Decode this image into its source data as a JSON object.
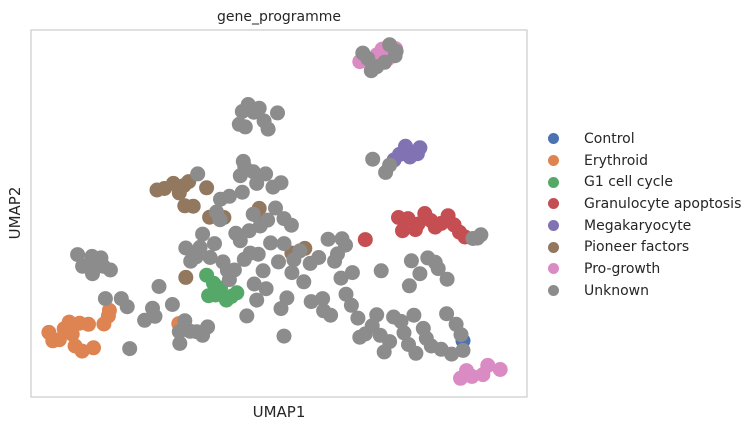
{
  "chart_data": {
    "type": "scatter",
    "title": "gene_programme",
    "xlabel": "UMAP1",
    "ylabel": "UMAP2",
    "xlim": [
      0,
      100
    ],
    "ylim": [
      0,
      100
    ],
    "x_ticks": [],
    "y_ticks": [],
    "grid": false,
    "legend_position": "right",
    "series": [
      {
        "name": "Control",
        "color": "#4c72b0",
        "points": [
          [
            87.1,
            15.3
          ]
        ]
      },
      {
        "name": "Erythroid",
        "color": "#dd8452",
        "points": [
          [
            3.6,
            17.6
          ],
          [
            4.4,
            15.3
          ],
          [
            5.7,
            15.6
          ],
          [
            6.7,
            18.6
          ],
          [
            7.7,
            20.4
          ],
          [
            8.3,
            17.1
          ],
          [
            8.9,
            13.9
          ],
          [
            9.8,
            20.1
          ],
          [
            10.3,
            12.5
          ],
          [
            11.6,
            19.8
          ],
          [
            12.6,
            13.4
          ],
          [
            14.7,
            19.9
          ],
          [
            15.6,
            22.1
          ],
          [
            15.8,
            23.6
          ],
          [
            29.8,
            20.0
          ]
        ]
      },
      {
        "name": "G1 cell cycle",
        "color": "#55a868",
        "points": [
          [
            35.4,
            33.2
          ],
          [
            36.8,
            31.0
          ],
          [
            37.2,
            27.8
          ],
          [
            38.2,
            29.7
          ],
          [
            39.4,
            26.4
          ],
          [
            40.4,
            27.4
          ],
          [
            41.5,
            28.4
          ],
          [
            35.8,
            27.6
          ]
        ]
      },
      {
        "name": "Granulocyte apoptosis",
        "color": "#c44e52",
        "points": [
          [
            67.4,
            42.9
          ],
          [
            74.1,
            48.9
          ],
          [
            74.9,
            45.3
          ],
          [
            76.0,
            48.6
          ],
          [
            77.5,
            45.6
          ],
          [
            78.0,
            47.1
          ],
          [
            79.4,
            50.0
          ],
          [
            80.6,
            48.1
          ],
          [
            81.5,
            46.3
          ],
          [
            82.7,
            47.3
          ],
          [
            84.1,
            49.4
          ],
          [
            85.3,
            46.9
          ],
          [
            86.4,
            44.9
          ],
          [
            87.5,
            43.6
          ]
        ]
      },
      {
        "name": "Megakaryocyte",
        "color": "#8172b3",
        "points": [
          [
            73.2,
            64.6
          ],
          [
            74.3,
            66.1
          ],
          [
            75.5,
            68.3
          ],
          [
            76.4,
            65.4
          ],
          [
            77.9,
            66.3
          ],
          [
            78.4,
            67.9
          ]
        ]
      },
      {
        "name": "Pioneer factors",
        "color": "#937860",
        "points": [
          [
            25.4,
            56.4
          ],
          [
            26.9,
            56.8
          ],
          [
            28.7,
            58.2
          ],
          [
            29.9,
            55.6
          ],
          [
            30.8,
            57.6
          ],
          [
            31.8,
            58.7
          ],
          [
            31.0,
            52.1
          ],
          [
            32.7,
            52.0
          ],
          [
            35.4,
            57.0
          ],
          [
            36.0,
            49.0
          ],
          [
            38.9,
            48.9
          ],
          [
            45.6,
            49.4
          ],
          [
            46.0,
            51.4
          ],
          [
            52.6,
            39.2
          ],
          [
            55.2,
            40.5
          ],
          [
            31.2,
            32.6
          ]
        ]
      },
      {
        "name": "Pro-growth",
        "color": "#da8bc3",
        "points": [
          [
            66.3,
            91.4
          ],
          [
            69.8,
            93.3
          ],
          [
            70.8,
            94.8
          ],
          [
            72.0,
            92.2
          ],
          [
            73.5,
            94.9
          ],
          [
            86.6,
            5.1
          ],
          [
            87.8,
            7.2
          ],
          [
            88.9,
            5.6
          ],
          [
            91.1,
            6.1
          ],
          [
            92.1,
            8.6
          ],
          [
            94.6,
            7.5
          ]
        ]
      },
      {
        "name": "Unknown",
        "color": "#8c8c8c",
        "points": [
          [
            12.0,
            36.6
          ],
          [
            12.4,
            33.6
          ],
          [
            14.6,
            35.6
          ],
          [
            16.0,
            34.6
          ],
          [
            15.0,
            26.8
          ],
          [
            18.2,
            26.8
          ],
          [
            19.4,
            24.6
          ],
          [
            19.9,
            13.2
          ],
          [
            22.9,
            20.9
          ],
          [
            24.5,
            24.2
          ],
          [
            25.8,
            30.1
          ],
          [
            25.0,
            22.0
          ],
          [
            28.5,
            25.2
          ],
          [
            29.9,
            17.8
          ],
          [
            30.0,
            14.6
          ],
          [
            31.0,
            20.8
          ],
          [
            32.1,
            17.9
          ],
          [
            33.4,
            17.8
          ],
          [
            34.6,
            16.8
          ],
          [
            35.6,
            19.1
          ],
          [
            31.2,
            40.6
          ],
          [
            32.2,
            37.0
          ],
          [
            33.3,
            38.2
          ],
          [
            34.1,
            40.8
          ],
          [
            34.6,
            44.4
          ],
          [
            36.1,
            38.0
          ],
          [
            37.0,
            41.8
          ],
          [
            37.4,
            50.4
          ],
          [
            38.1,
            48.3
          ],
          [
            38.2,
            53.9
          ],
          [
            38.7,
            36.8
          ],
          [
            39.6,
            34.5
          ],
          [
            40.0,
            32.0
          ],
          [
            41.0,
            34.6
          ],
          [
            41.3,
            44.6
          ],
          [
            42.2,
            42.6
          ],
          [
            43.0,
            37.5
          ],
          [
            43.5,
            22.1
          ],
          [
            44.0,
            45.3
          ],
          [
            44.2,
            39.2
          ],
          [
            45.0,
            30.8
          ],
          [
            45.5,
            26.4
          ],
          [
            45.8,
            38.9
          ],
          [
            46.8,
            34.4
          ],
          [
            47.4,
            29.5
          ],
          [
            48.3,
            42.0
          ],
          [
            48.8,
            57.2
          ],
          [
            49.3,
            51.5
          ],
          [
            49.9,
            36.8
          ],
          [
            51.0,
            41.8
          ],
          [
            50.4,
            24.1
          ],
          [
            51.0,
            16.6
          ],
          [
            51.6,
            27.0
          ],
          [
            52.6,
            33.9
          ],
          [
            53.0,
            37.4
          ],
          [
            54.2,
            39.8
          ],
          [
            55.0,
            31.4
          ],
          [
            56.3,
            36.4
          ],
          [
            56.5,
            26.0
          ],
          [
            58.0,
            38.0
          ],
          [
            58.8,
            26.8
          ],
          [
            59.0,
            23.5
          ],
          [
            60.4,
            22.3
          ],
          [
            61.8,
            39.0
          ],
          [
            62.5,
            32.4
          ],
          [
            63.5,
            28.0
          ],
          [
            64.8,
            33.9
          ],
          [
            64.6,
            25.0
          ],
          [
            65.9,
            21.5
          ],
          [
            66.3,
            16.3
          ],
          [
            67.4,
            17.2
          ],
          [
            68.8,
            19.4
          ],
          [
            69.7,
            22.4
          ],
          [
            70.4,
            16.8
          ],
          [
            70.6,
            34.4
          ],
          [
            71.2,
            12.3
          ],
          [
            72.3,
            15.1
          ],
          [
            73.1,
            21.8
          ],
          [
            74.6,
            20.6
          ],
          [
            75.2,
            17.5
          ],
          [
            76.1,
            14.3
          ],
          [
            76.3,
            30.3
          ],
          [
            76.7,
            37.1
          ],
          [
            77.2,
            22.3
          ],
          [
            77.6,
            11.9
          ],
          [
            78.4,
            33.6
          ],
          [
            79.1,
            18.7
          ],
          [
            79.7,
            16.0
          ],
          [
            80.0,
            37.9
          ],
          [
            80.7,
            13.9
          ],
          [
            81.5,
            36.7
          ],
          [
            82.1,
            35.0
          ],
          [
            82.7,
            13.0
          ],
          [
            83.8,
            22.7
          ],
          [
            83.9,
            32.1
          ],
          [
            84.8,
            11.7
          ],
          [
            85.7,
            19.8
          ],
          [
            86.7,
            17.0
          ],
          [
            87.1,
            12.7
          ],
          [
            89.1,
            43.2
          ],
          [
            90.0,
            43.3
          ],
          [
            90.7,
            44.2
          ],
          [
            59.9,
            43.0
          ],
          [
            61.2,
            37.0
          ],
          [
            63.4,
            41.4
          ],
          [
            62.7,
            43.1
          ],
          [
            68.9,
            64.8
          ],
          [
            71.5,
            61.2
          ],
          [
            72.3,
            63.2
          ],
          [
            43.1,
            62.6
          ],
          [
            42.2,
            60.3
          ],
          [
            44.8,
            61.4
          ],
          [
            45.5,
            58.2
          ],
          [
            47.3,
            60.8
          ],
          [
            50.4,
            58.4
          ],
          [
            42.6,
            55.8
          ],
          [
            33.6,
            60.8
          ],
          [
            40.0,
            54.7
          ],
          [
            42.8,
            64.2
          ],
          [
            44.8,
            49.8
          ],
          [
            46.2,
            46.6
          ],
          [
            47.7,
            48.2
          ],
          [
            51.0,
            48.6
          ],
          [
            52.5,
            46.8
          ],
          [
            42.0,
            74.3
          ],
          [
            42.6,
            77.8
          ],
          [
            43.8,
            79.7
          ],
          [
            44.9,
            77.6
          ],
          [
            46.0,
            78.7
          ],
          [
            47.0,
            75.2
          ],
          [
            47.8,
            73.0
          ],
          [
            43.2,
            73.6
          ],
          [
            49.7,
            77.4
          ],
          [
            71.3,
            91.2
          ],
          [
            69.7,
            90.0
          ],
          [
            67.9,
            92.2
          ],
          [
            66.9,
            93.7
          ],
          [
            68.6,
            88.9
          ],
          [
            72.3,
            96.0
          ],
          [
            73.4,
            93.0
          ],
          [
            73.6,
            94.2
          ],
          [
            12.3,
            38.3
          ],
          [
            14.1,
            37.9
          ],
          [
            10.4,
            35.6
          ],
          [
            9.4,
            38.8
          ],
          [
            12.1,
            35.3
          ]
        ]
      }
    ]
  }
}
